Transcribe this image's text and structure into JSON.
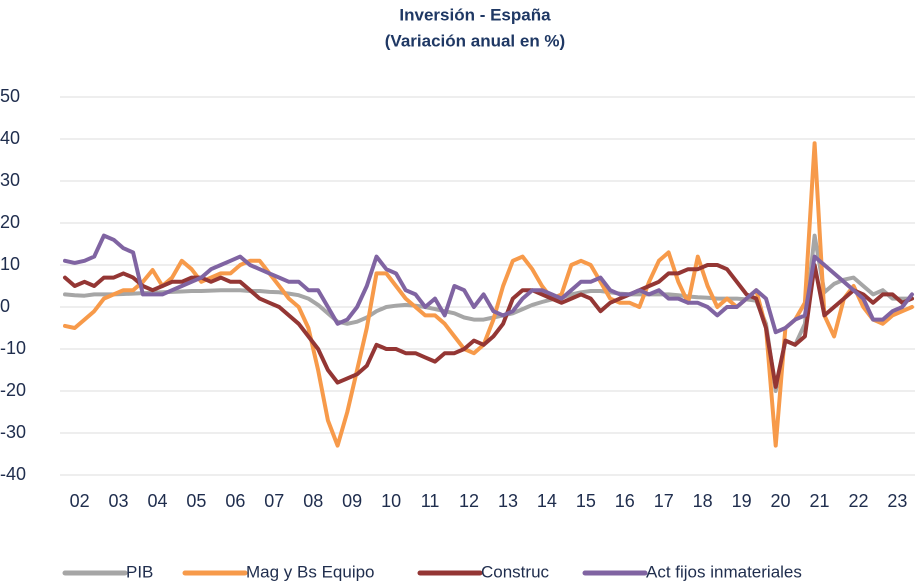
{
  "chart_data": {
    "type": "line",
    "title": "Inversión - España",
    "subtitle": "(Variación anual en %)",
    "categories": [
      "02",
      null,
      null,
      null,
      "03",
      null,
      null,
      null,
      "04",
      null,
      null,
      null,
      "05",
      null,
      null,
      null,
      "06",
      null,
      null,
      null,
      "07",
      null,
      null,
      null,
      "08",
      null,
      null,
      null,
      "09",
      null,
      null,
      null,
      "10",
      null,
      null,
      null,
      "11",
      null,
      null,
      null,
      "12",
      null,
      null,
      null,
      "13",
      null,
      null,
      null,
      "14",
      null,
      null,
      null,
      "15",
      null,
      null,
      null,
      "16",
      null,
      null,
      null,
      "17",
      null,
      null,
      null,
      "18",
      null,
      null,
      null,
      "19",
      null,
      null,
      null,
      "20",
      null,
      null,
      null,
      "21",
      null,
      null,
      null,
      "22",
      null,
      null,
      null,
      "23",
      null,
      null,
      null
    ],
    "series": [
      {
        "name": "PIB",
        "color": "#a6a6a6",
        "values": [
          3,
          2.8,
          2.7,
          3,
          3,
          3,
          3.1,
          3.2,
          3.3,
          3.4,
          3.5,
          3.6,
          3.7,
          3.8,
          3.8,
          3.9,
          4,
          4,
          4,
          3.8,
          3.8,
          3.6,
          3.5,
          3.2,
          2.8,
          2,
          0.5,
          -1.5,
          -3.5,
          -4,
          -3.5,
          -2.5,
          -1,
          0,
          0.3,
          0.5,
          0.3,
          0,
          -0.5,
          -1,
          -1.5,
          -2.5,
          -3,
          -3,
          -2.5,
          -2,
          -1.5,
          -0.5,
          0.5,
          1.2,
          1.8,
          2.2,
          3,
          3.5,
          3.8,
          3.8,
          3.5,
          3.2,
          3,
          3,
          3,
          3,
          3,
          2.8,
          2.5,
          2.3,
          2.2,
          2,
          2,
          2,
          1.8,
          1.5,
          -4,
          -20,
          -8,
          -9,
          -4,
          17,
          3.5,
          5.5,
          6.5,
          7,
          5,
          3,
          4,
          2,
          2,
          2
        ]
      },
      {
        "name": "Mag y Bs Equipo",
        "color": "#f79a4a",
        "values": [
          -4.5,
          -5,
          -3,
          -1,
          2,
          3,
          4,
          4,
          6,
          8.8,
          5,
          7,
          11,
          9,
          6,
          7,
          8,
          8,
          10,
          11,
          11,
          8,
          5,
          2,
          0,
          -5,
          -15,
          -27,
          -33,
          -25,
          -15,
          -5,
          8,
          8,
          5,
          2,
          0,
          -2,
          -2,
          -4,
          -7,
          -10,
          -11,
          -9,
          -3,
          5,
          11,
          12,
          9,
          5,
          2,
          3,
          10,
          11,
          10,
          6,
          2,
          1,
          1,
          0,
          6,
          11,
          13,
          6,
          1,
          12,
          5,
          0,
          2,
          0,
          2,
          4,
          -5,
          -33,
          -5,
          -3,
          1,
          39,
          -2,
          -7,
          2,
          5,
          0,
          -3,
          -4,
          -2,
          -1,
          0
        ]
      },
      {
        "name": "Construc",
        "color": "#943634",
        "values": [
          7,
          5,
          6,
          5,
          7,
          7,
          8,
          7,
          5,
          4,
          5,
          6,
          6,
          7,
          7,
          6,
          7,
          6,
          6,
          4,
          2,
          1,
          0,
          -2,
          -4,
          -7,
          -10,
          -15,
          -18,
          -17,
          -16,
          -14,
          -9,
          -10,
          -10,
          -11,
          -11,
          -12,
          -13,
          -11,
          -11,
          -10,
          -8,
          -9,
          -7,
          -4,
          2,
          4,
          4,
          3,
          2,
          1,
          2,
          3,
          2,
          -1,
          1,
          2,
          3,
          4,
          5,
          6,
          8,
          8,
          9,
          9,
          10,
          10,
          9,
          6,
          3,
          2,
          -5,
          -19,
          -8,
          -9,
          -7,
          10,
          -2,
          0,
          2,
          4,
          3,
          1,
          3,
          3,
          1,
          2
        ]
      },
      {
        "name": "Act fijos  inmateriales",
        "color": "#8064a2",
        "values": [
          11,
          10.5,
          11,
          12,
          17,
          16,
          14,
          13,
          3,
          3,
          3,
          4,
          5,
          6,
          7,
          9,
          10,
          11,
          12,
          10,
          9,
          8,
          7,
          6,
          6,
          4,
          4,
          0,
          -4,
          -3,
          0,
          5,
          12,
          9,
          8,
          4,
          3,
          0,
          2,
          -2,
          5,
          4,
          0,
          3,
          -1,
          -2,
          -1,
          2,
          4,
          4,
          3,
          2,
          4,
          6,
          6,
          7,
          4,
          3,
          3,
          4,
          3,
          4,
          2,
          2,
          1,
          1,
          0,
          -2,
          0,
          0,
          2,
          4,
          2,
          -6,
          -5,
          -3,
          -2,
          12,
          10,
          8,
          6,
          4,
          2,
          -3,
          -3,
          -1,
          0,
          3
        ]
      }
    ],
    "ylim": [
      -40,
      50
    ],
    "yticks": [
      -40,
      -30,
      -20,
      -10,
      0,
      10,
      20,
      30,
      40,
      50
    ],
    "grid": true,
    "legend": "bottom"
  }
}
